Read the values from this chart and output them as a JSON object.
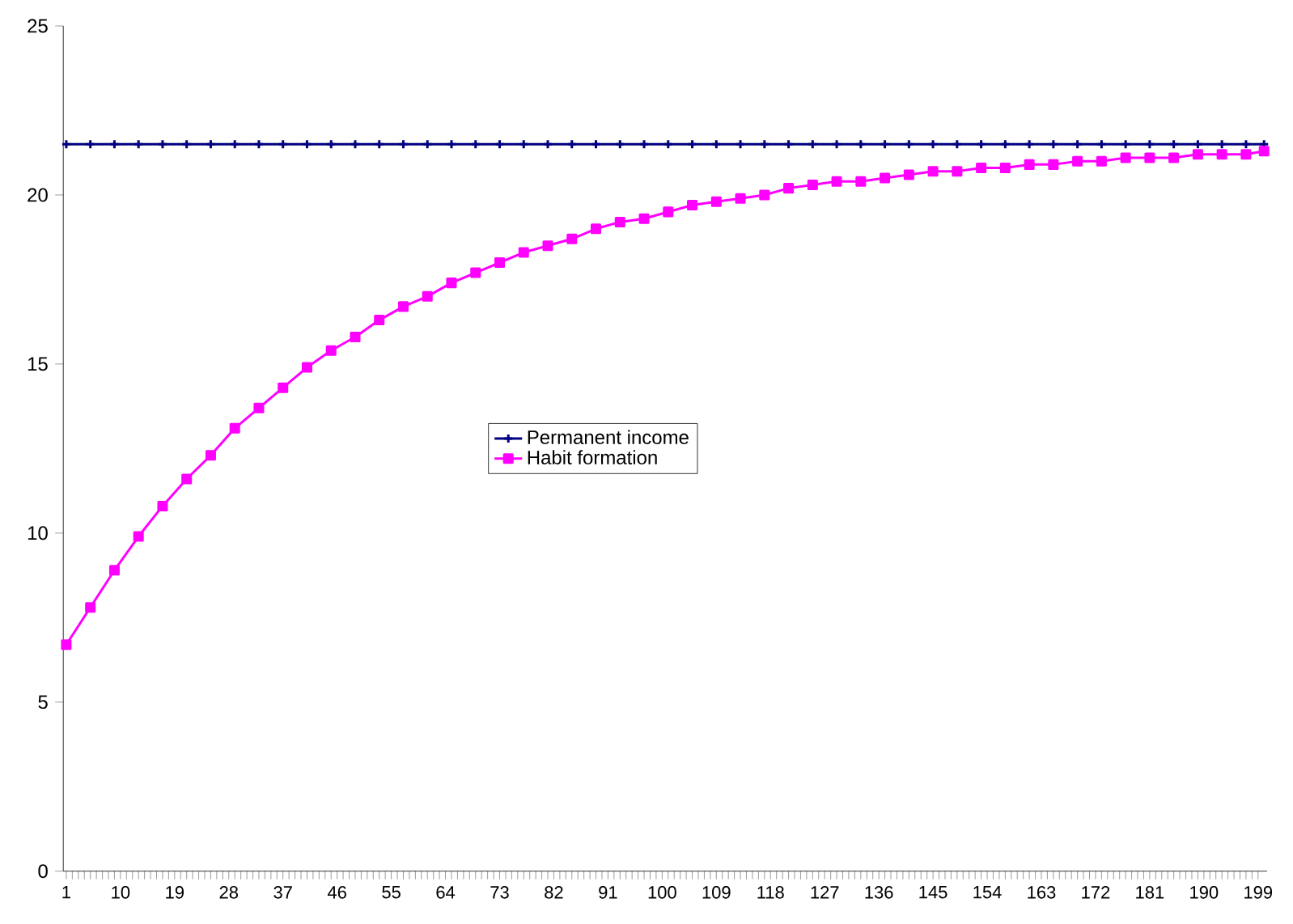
{
  "chart_data": {
    "type": "line",
    "x": [
      1,
      5,
      9,
      13,
      17,
      21,
      25,
      29,
      33,
      37,
      41,
      45,
      49,
      53,
      57,
      61,
      65,
      69,
      73,
      77,
      81,
      85,
      89,
      93,
      97,
      101,
      105,
      109,
      113,
      117,
      121,
      125,
      129,
      133,
      137,
      141,
      145,
      149,
      153,
      157,
      161,
      165,
      169,
      173,
      177,
      181,
      185,
      189,
      193,
      197,
      200
    ],
    "series": [
      {
        "name": "Permanent income",
        "color": "#000080",
        "marker": "cross",
        "values": [
          21.5,
          21.5,
          21.5,
          21.5,
          21.5,
          21.5,
          21.5,
          21.5,
          21.5,
          21.5,
          21.5,
          21.5,
          21.5,
          21.5,
          21.5,
          21.5,
          21.5,
          21.5,
          21.5,
          21.5,
          21.5,
          21.5,
          21.5,
          21.5,
          21.5,
          21.5,
          21.5,
          21.5,
          21.5,
          21.5,
          21.5,
          21.5,
          21.5,
          21.5,
          21.5,
          21.5,
          21.5,
          21.5,
          21.5,
          21.5,
          21.5,
          21.5,
          21.5,
          21.5,
          21.5,
          21.5,
          21.5,
          21.5,
          21.5,
          21.5,
          21.5
        ]
      },
      {
        "name": "Habit formation",
        "color": "#ff00ff",
        "marker": "square",
        "values": [
          6.7,
          7.8,
          8.9,
          9.9,
          10.8,
          11.6,
          12.3,
          13.1,
          13.7,
          14.3,
          14.9,
          15.4,
          15.8,
          16.3,
          16.7,
          17.0,
          17.4,
          17.7,
          18.0,
          18.3,
          18.5,
          18.7,
          19.0,
          19.2,
          19.3,
          19.5,
          19.7,
          19.8,
          19.9,
          20.0,
          20.2,
          20.3,
          20.4,
          20.4,
          20.5,
          20.6,
          20.7,
          20.7,
          20.8,
          20.8,
          20.9,
          20.9,
          21.0,
          21.0,
          21.1,
          21.1,
          21.1,
          21.2,
          21.2,
          21.2,
          21.3
        ]
      }
    ],
    "xlim": [
      0.5,
      200.5
    ],
    "xticks": [
      1,
      10,
      19,
      28,
      37,
      46,
      55,
      64,
      73,
      82,
      91,
      100,
      109,
      118,
      127,
      136,
      145,
      154,
      163,
      172,
      181,
      190,
      199
    ],
    "ylim": [
      0,
      25
    ],
    "yticks": [
      0,
      5,
      10,
      15,
      20,
      25
    ],
    "grid": false,
    "legend": "center"
  }
}
